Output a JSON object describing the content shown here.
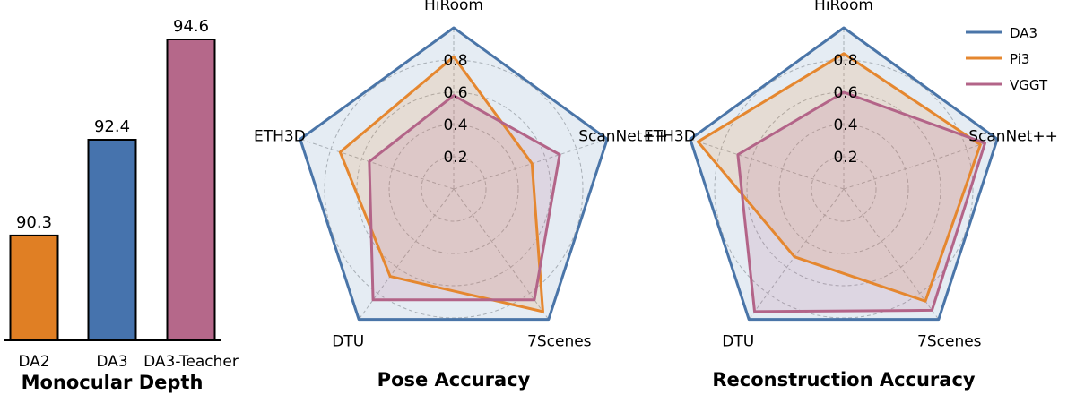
{
  "chart_data": [
    {
      "type": "bar",
      "title": "Monocular Depth",
      "categories": [
        "DA2",
        "DA3",
        "DA3-Teacher"
      ],
      "values": [
        90.3,
        92.4,
        94.6
      ],
      "value_labels": [
        "90.3",
        "92.4",
        "94.6"
      ],
      "colors": [
        "#e07f24",
        "#4673ad",
        "#b5688a"
      ],
      "ylim": [
        88,
        95.5
      ]
    },
    {
      "type": "radar",
      "title": "Pose Accuracy",
      "axes": [
        "HiRoom",
        "ScanNet++",
        "7Scenes",
        "DTU",
        "ETH3D"
      ],
      "rlim": [
        0,
        1.0
      ],
      "rticks": [
        0.2,
        0.4,
        0.6,
        0.8
      ],
      "rtick_labels": [
        "0.2",
        "0.4",
        "0.6",
        "0.8"
      ],
      "series": [
        {
          "name": "DA3",
          "color": "#4a75a8",
          "values": [
            1.0,
            1.0,
            1.0,
            1.0,
            1.0
          ]
        },
        {
          "name": "Pi3",
          "color": "#e5872f",
          "values": [
            0.82,
            0.51,
            0.94,
            0.67,
            0.74
          ]
        },
        {
          "name": "VGGT",
          "color": "#b36488",
          "values": [
            0.58,
            0.69,
            0.85,
            0.85,
            0.55
          ]
        }
      ]
    },
    {
      "type": "radar",
      "title": "Reconstruction Accuracy",
      "axes": [
        "HiRoom",
        "ScanNet++",
        "7Scenes",
        "DTU",
        "ETH3D"
      ],
      "rlim": [
        0,
        1.0
      ],
      "rticks": [
        0.2,
        0.4,
        0.6,
        0.8
      ],
      "rtick_labels": [
        "0.2",
        "0.4",
        "0.6",
        "0.8"
      ],
      "series": [
        {
          "name": "DA3",
          "color": "#4a75a8",
          "values": [
            1.0,
            1.0,
            1.0,
            1.0,
            1.0
          ]
        },
        {
          "name": "Pi3",
          "color": "#e5872f",
          "values": [
            0.84,
            0.89,
            0.86,
            0.52,
            0.95
          ]
        },
        {
          "name": "VGGT",
          "color": "#b36488",
          "values": [
            0.6,
            0.92,
            0.93,
            0.94,
            0.69
          ]
        }
      ]
    }
  ],
  "legend": {
    "placement": "top-right",
    "items": [
      {
        "name": "DA3",
        "color": "#4a75a8"
      },
      {
        "name": "Pi3",
        "color": "#e5872f"
      },
      {
        "name": "VGGT",
        "color": "#b36488"
      }
    ]
  }
}
